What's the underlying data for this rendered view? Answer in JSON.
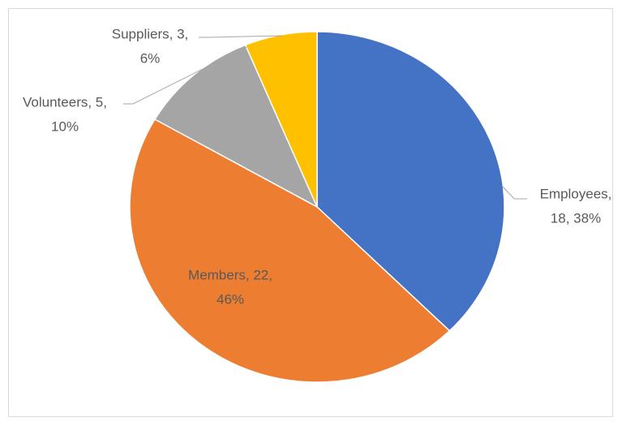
{
  "chart_data": {
    "type": "pie",
    "categories": [
      "Employees",
      "Members",
      "Volunteers",
      "Suppliers"
    ],
    "values": [
      18,
      22,
      5,
      3
    ],
    "value_labels": [
      [
        "Employees,",
        "18, 38%"
      ],
      [
        "Members, 22,",
        "46%"
      ],
      [
        "Volunteers, 5,",
        "10%"
      ],
      [
        "Suppliers, 3,",
        "6%"
      ]
    ],
    "colors": [
      "#4472c4",
      "#ed7d31",
      "#a5a5a5",
      "#ffc000"
    ]
  }
}
